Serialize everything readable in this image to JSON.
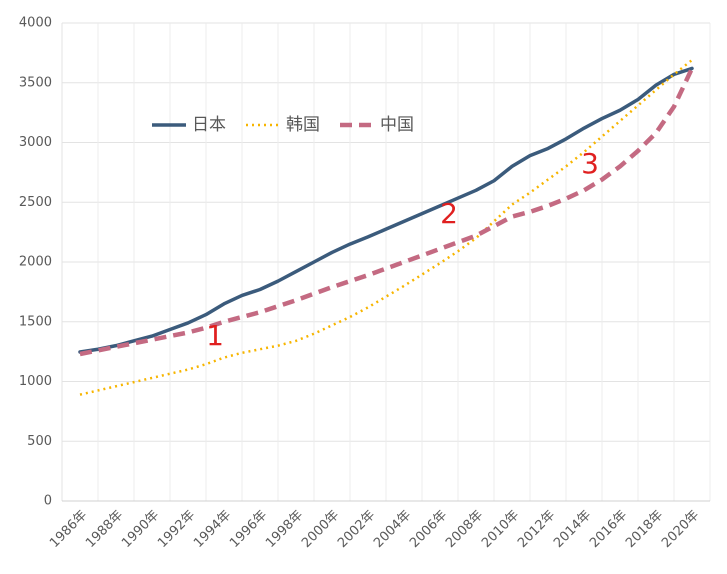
{
  "chart_data": {
    "type": "line",
    "categories": [
      "1986年",
      null,
      "1988年",
      null,
      "1990年",
      null,
      "1992年",
      null,
      "1994年",
      null,
      "1996年",
      null,
      "1998年",
      null,
      "2000年",
      null,
      "2002年",
      null,
      "2004年",
      null,
      "2006年",
      null,
      "2008年",
      null,
      "2010年",
      null,
      "2012年",
      null,
      "2014年",
      null,
      "2016年",
      null,
      "2018年",
      null,
      "2020年"
    ],
    "series": [
      {
        "name": "日本",
        "color": "#3b5b7c",
        "style": "solid",
        "values": [
          1247,
          1270,
          1300,
          1340,
          1380,
          1435,
          1490,
          1560,
          1650,
          1720,
          1770,
          1840,
          1920,
          2000,
          2080,
          2150,
          2210,
          2275,
          2340,
          2405,
          2470,
          2535,
          2600,
          2680,
          2800,
          2890,
          2950,
          3030,
          3120,
          3200,
          3270,
          3360,
          3480,
          3570,
          3620
        ]
      },
      {
        "name": "韩国",
        "color": "#f7b500",
        "style": "dotted",
        "values": [
          890,
          925,
          960,
          995,
          1030,
          1065,
          1100,
          1145,
          1200,
          1240,
          1270,
          1300,
          1340,
          1400,
          1470,
          1540,
          1620,
          1710,
          1800,
          1895,
          1990,
          2090,
          2200,
          2340,
          2480,
          2580,
          2690,
          2800,
          2920,
          3050,
          3180,
          3310,
          3440,
          3570,
          3690
        ]
      },
      {
        "name": "中国",
        "color": "#c46a82",
        "style": "dashed",
        "values": [
          1230,
          1260,
          1290,
          1320,
          1350,
          1380,
          1410,
          1450,
          1500,
          1540,
          1580,
          1630,
          1680,
          1735,
          1790,
          1840,
          1890,
          1945,
          2000,
          2055,
          2110,
          2165,
          2220,
          2300,
          2380,
          2420,
          2470,
          2530,
          2600,
          2690,
          2800,
          2930,
          3080,
          3300,
          3620
        ]
      }
    ],
    "ylim": [
      0,
      4000
    ],
    "yticks": [
      0,
      500,
      1000,
      1500,
      2000,
      2500,
      3000,
      3500,
      4000
    ],
    "grid": true,
    "legend": "top-left",
    "annotations": [
      "1",
      "2",
      "3"
    ]
  }
}
